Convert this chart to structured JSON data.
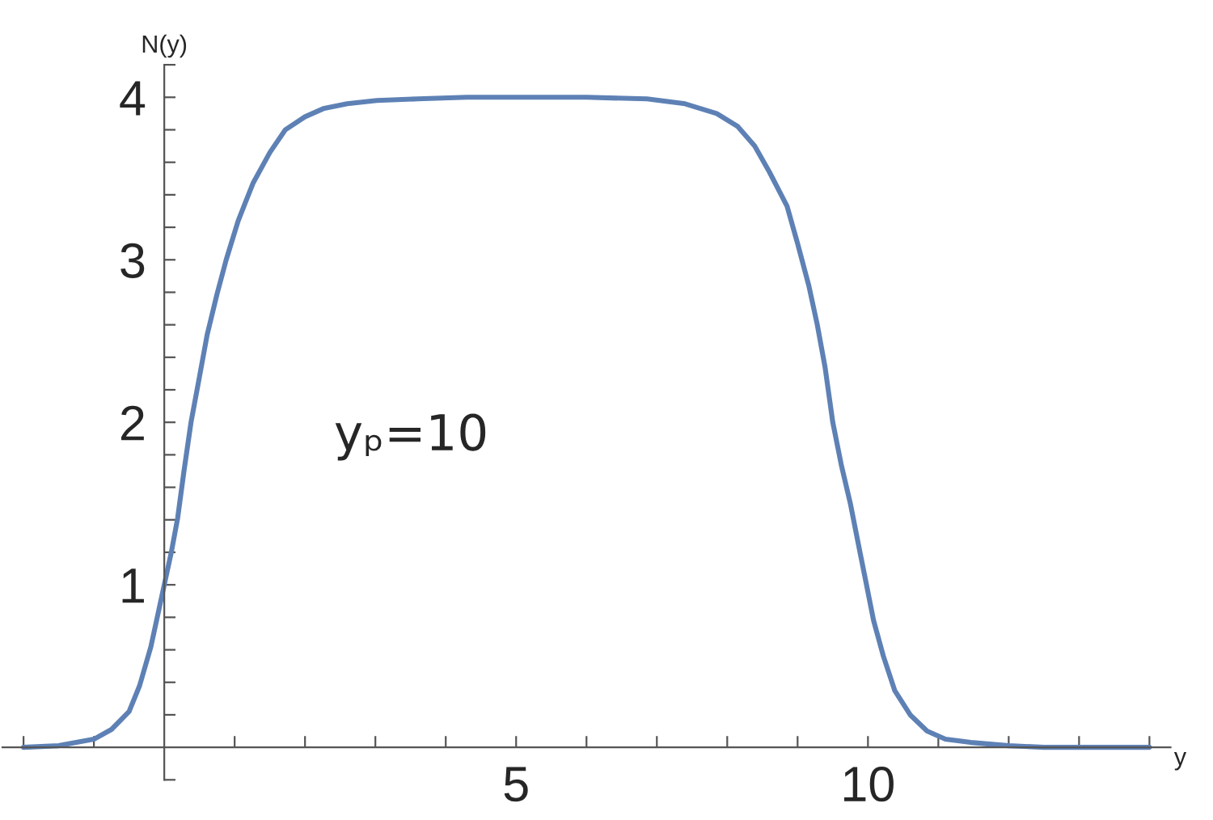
{
  "chart_data": {
    "type": "line",
    "xlabel": "y",
    "ylabel": "N(y)",
    "annotations": [
      "yₚ=10"
    ],
    "series": [
      {
        "color": "#5e81b5",
        "x": [
          -2.0,
          -1.5,
          -1.0,
          -0.75,
          -0.5,
          -0.35,
          -0.19,
          -0.1,
          0.0,
          0.1,
          0.19,
          0.28,
          0.38,
          0.5,
          0.61,
          0.75,
          0.88,
          1.05,
          1.26,
          1.5,
          1.72,
          2.0,
          2.26,
          2.6,
          3.02,
          3.6,
          4.3,
          5.0,
          6.0,
          6.86,
          7.4,
          7.85,
          8.15,
          8.39,
          8.6,
          8.85,
          9.0,
          9.16,
          9.28,
          9.39,
          9.5,
          9.62,
          9.75,
          9.85,
          9.97,
          10.08,
          10.22,
          10.38,
          10.6,
          10.84,
          11.1,
          11.46,
          12.0,
          12.5,
          13.2,
          14.0
        ],
        "values": [
          0.0,
          0.01,
          0.05,
          0.11,
          0.22,
          0.38,
          0.62,
          0.8,
          1.0,
          1.2,
          1.41,
          1.7,
          2.0,
          2.28,
          2.54,
          2.79,
          3.0,
          3.24,
          3.47,
          3.66,
          3.8,
          3.88,
          3.93,
          3.96,
          3.98,
          3.99,
          4.0,
          4.0,
          4.0,
          3.99,
          3.96,
          3.9,
          3.82,
          3.7,
          3.54,
          3.33,
          3.1,
          2.84,
          2.6,
          2.34,
          2.0,
          1.74,
          1.5,
          1.28,
          1.02,
          0.78,
          0.56,
          0.35,
          0.2,
          0.1,
          0.05,
          0.03,
          0.01,
          0.0,
          0.0,
          0.0
        ]
      }
    ],
    "xlim": [
      -2.3,
      14.3
    ],
    "ylim": [
      -0.2,
      4.2
    ],
    "xticks": [
      {
        "value": -2,
        "label": null
      },
      {
        "value": -1,
        "label": null
      },
      {
        "value": 1,
        "label": null
      },
      {
        "value": 2,
        "label": null
      },
      {
        "value": 3,
        "label": null
      },
      {
        "value": 4,
        "label": null
      },
      5,
      {
        "value": 6,
        "label": null
      },
      {
        "value": 7,
        "label": null
      },
      {
        "value": 8,
        "label": null
      },
      {
        "value": 9,
        "label": null
      },
      10,
      {
        "value": 11,
        "label": null
      },
      {
        "value": 12,
        "label": null
      },
      {
        "value": 13,
        "label": null
      },
      {
        "value": 14,
        "label": null
      }
    ],
    "yticks": [
      {
        "value": -0.2,
        "label": null
      },
      {
        "value": 0.2,
        "label": null
      },
      {
        "value": 0.4,
        "label": null
      },
      {
        "value": 0.6,
        "label": null
      },
      {
        "value": 0.8,
        "label": null
      },
      1,
      {
        "value": 1.2,
        "label": null
      },
      {
        "value": 1.4,
        "label": null
      },
      {
        "value": 1.6,
        "label": null
      },
      {
        "value": 1.8,
        "label": null
      },
      2,
      {
        "value": 2.2,
        "label": null
      },
      {
        "value": 2.4,
        "label": null
      },
      {
        "value": 2.6,
        "label": null
      },
      {
        "value": 2.8,
        "label": null
      },
      3,
      {
        "value": 3.2,
        "label": null
      },
      {
        "value": 3.4,
        "label": null
      },
      {
        "value": 3.6,
        "label": null
      },
      {
        "value": 3.8,
        "label": null
      },
      4,
      {
        "value": 4.2,
        "label": null
      }
    ],
    "grid": false,
    "legend": false,
    "marker": "none",
    "line_style": "solid"
  }
}
